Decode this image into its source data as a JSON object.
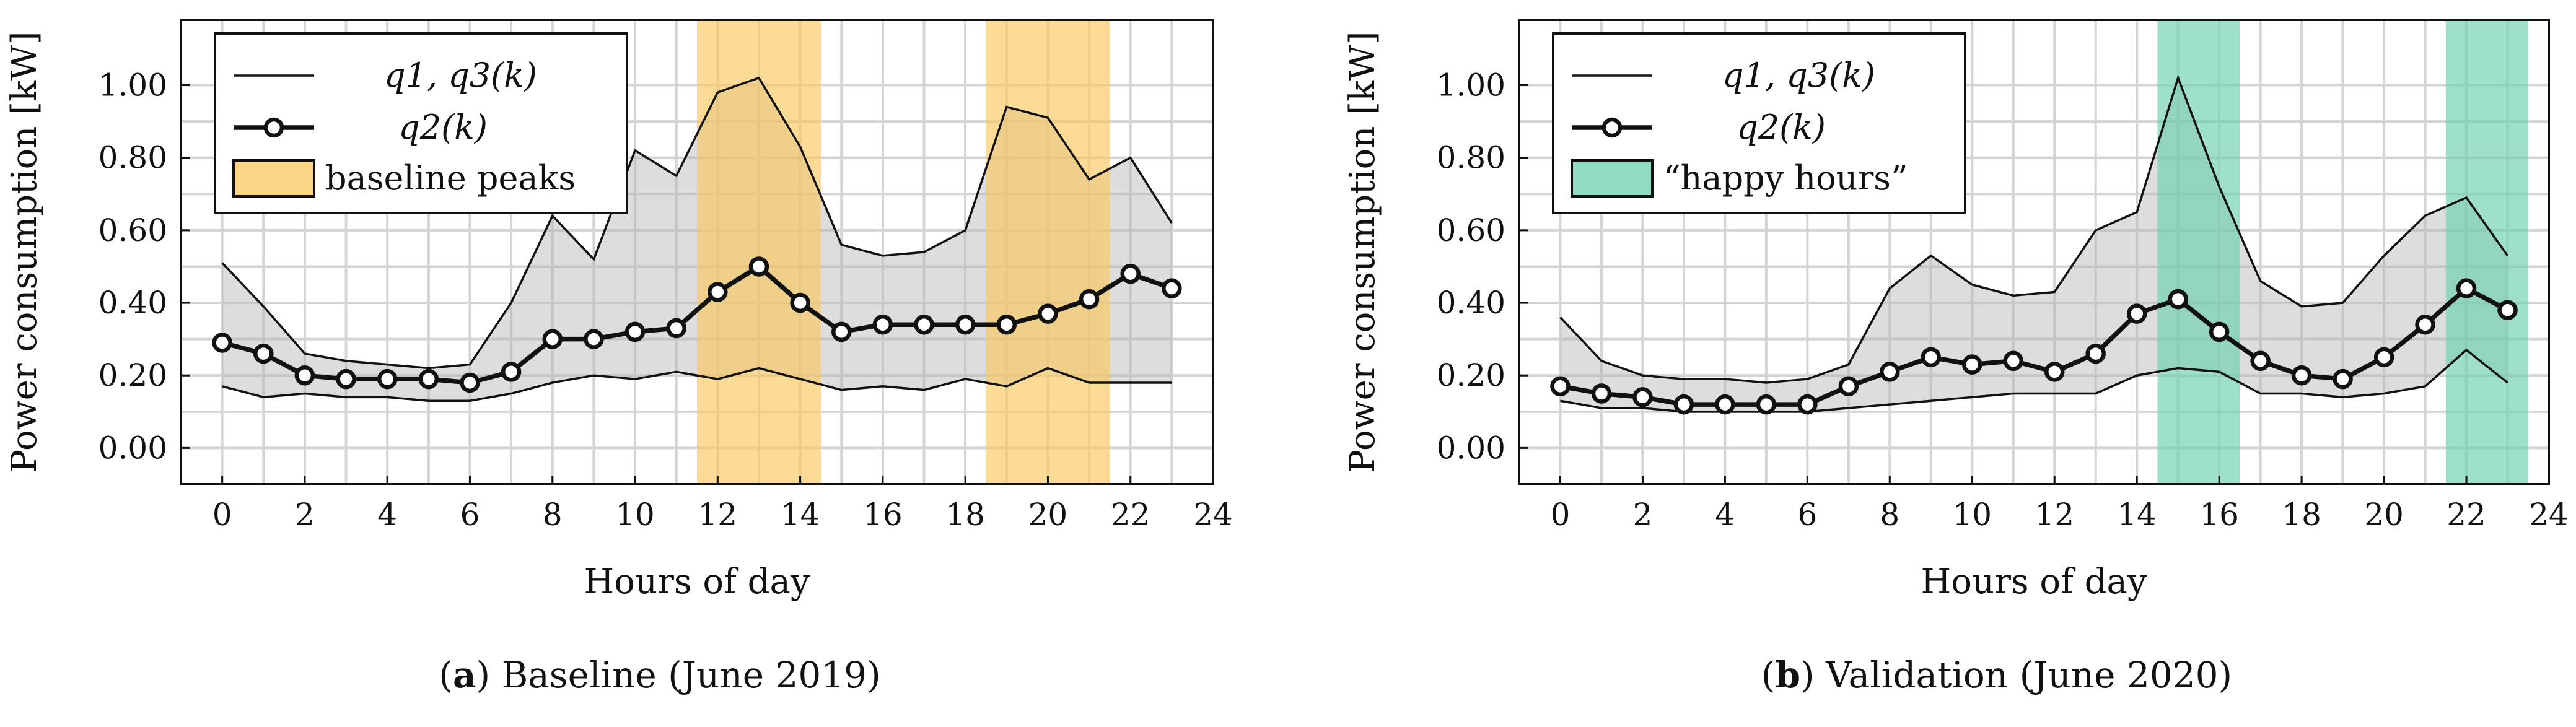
{
  "chart_data": [
    {
      "type": "line",
      "panel": "a",
      "caption_tag": "a",
      "caption_text": " Baseline (June 2019)",
      "xlabel": "Hours of day",
      "ylabel": "Power consumption [kW]",
      "xlim": [
        -1,
        24
      ],
      "ylim": [
        -0.1,
        1.18
      ],
      "xticks": [
        0,
        2,
        4,
        6,
        8,
        10,
        12,
        14,
        16,
        18,
        20,
        22,
        24
      ],
      "yticks": [
        0.0,
        0.2,
        0.4,
        0.6,
        0.8,
        1.0
      ],
      "ytick_labels": [
        "0.00",
        "0.20",
        "0.40",
        "0.60",
        "0.80",
        "1.00"
      ],
      "grid": true,
      "legend_position": "top-left",
      "x": [
        0,
        1,
        2,
        3,
        4,
        5,
        6,
        7,
        8,
        9,
        10,
        11,
        12,
        13,
        14,
        15,
        16,
        17,
        18,
        19,
        20,
        21,
        22,
        23
      ],
      "series": [
        {
          "name": "q1, q3(k)",
          "role": "upper",
          "values": [
            0.51,
            0.39,
            0.26,
            0.24,
            0.23,
            0.22,
            0.23,
            0.4,
            0.64,
            0.52,
            0.82,
            0.75,
            0.98,
            1.02,
            0.83,
            0.56,
            0.53,
            0.54,
            0.6,
            0.94,
            0.91,
            0.74,
            0.8,
            0.62
          ]
        },
        {
          "name": "q1, q3(k)",
          "role": "lower",
          "values": [
            0.17,
            0.14,
            0.15,
            0.14,
            0.14,
            0.13,
            0.13,
            0.15,
            0.18,
            0.2,
            0.19,
            0.21,
            0.19,
            0.22,
            0.19,
            0.16,
            0.17,
            0.16,
            0.19,
            0.17,
            0.22,
            0.18,
            0.18,
            0.18
          ]
        },
        {
          "name": "q2(k)",
          "role": "median",
          "values": [
            0.29,
            0.26,
            0.2,
            0.19,
            0.19,
            0.19,
            0.18,
            0.21,
            0.3,
            0.3,
            0.32,
            0.33,
            0.43,
            0.5,
            0.4,
            0.32,
            0.34,
            0.34,
            0.34,
            0.34,
            0.37,
            0.41,
            0.48,
            0.44
          ]
        }
      ],
      "bands": [
        {
          "label": "baseline peaks",
          "from": 11.5,
          "to": 14.5,
          "color": "#f9c75e"
        },
        {
          "label": "baseline peaks",
          "from": 18.5,
          "to": 21.5,
          "color": "#f9c75e"
        }
      ],
      "legend": {
        "q13_label": "q1, q3(k)",
        "q2_label": "q2(k)",
        "band_label": "baseline peaks"
      }
    },
    {
      "type": "line",
      "panel": "b",
      "caption_tag": "b",
      "caption_text": " Validation (June 2020)",
      "xlabel": "Hours of day",
      "ylabel": "Power consumption [kW]",
      "xlim": [
        -1,
        24
      ],
      "ylim": [
        -0.1,
        1.18
      ],
      "xticks": [
        0,
        2,
        4,
        6,
        8,
        10,
        12,
        14,
        16,
        18,
        20,
        22,
        24
      ],
      "yticks": [
        0.0,
        0.2,
        0.4,
        0.6,
        0.8,
        1.0
      ],
      "ytick_labels": [
        "0.00",
        "0.20",
        "0.40",
        "0.60",
        "0.80",
        "1.00"
      ],
      "grid": true,
      "legend_position": "top-left",
      "x": [
        0,
        1,
        2,
        3,
        4,
        5,
        6,
        7,
        8,
        9,
        10,
        11,
        12,
        13,
        14,
        15,
        16,
        17,
        18,
        19,
        20,
        21,
        22,
        23
      ],
      "series": [
        {
          "name": "q1, q3(k)",
          "role": "upper",
          "values": [
            0.36,
            0.24,
            0.2,
            0.19,
            0.19,
            0.18,
            0.19,
            0.23,
            0.44,
            0.53,
            0.45,
            0.42,
            0.43,
            0.6,
            0.65,
            1.02,
            0.72,
            0.46,
            0.39,
            0.4,
            0.53,
            0.64,
            0.69,
            0.53
          ]
        },
        {
          "name": "q1, q3(k)",
          "role": "lower",
          "values": [
            0.13,
            0.11,
            0.11,
            0.1,
            0.1,
            0.1,
            0.1,
            0.11,
            0.12,
            0.13,
            0.14,
            0.15,
            0.15,
            0.15,
            0.2,
            0.22,
            0.21,
            0.15,
            0.15,
            0.14,
            0.15,
            0.17,
            0.27,
            0.18
          ]
        },
        {
          "name": "q2(k)",
          "role": "median",
          "values": [
            0.17,
            0.15,
            0.14,
            0.12,
            0.12,
            0.12,
            0.12,
            0.17,
            0.21,
            0.25,
            0.23,
            0.24,
            0.21,
            0.26,
            0.37,
            0.41,
            0.32,
            0.24,
            0.2,
            0.19,
            0.25,
            0.34,
            0.44,
            0.38
          ]
        }
      ],
      "bands": [
        {
          "label": "“happy hours”",
          "from": 14.5,
          "to": 16.5,
          "color": "#6ccfb0"
        },
        {
          "label": "“happy hours”",
          "from": 21.5,
          "to": 23.5,
          "color": "#6ccfb0"
        }
      ],
      "legend": {
        "q13_label": "q1, q3(k)",
        "q2_label": "q2(k)",
        "band_label": "“happy hours”"
      }
    }
  ]
}
